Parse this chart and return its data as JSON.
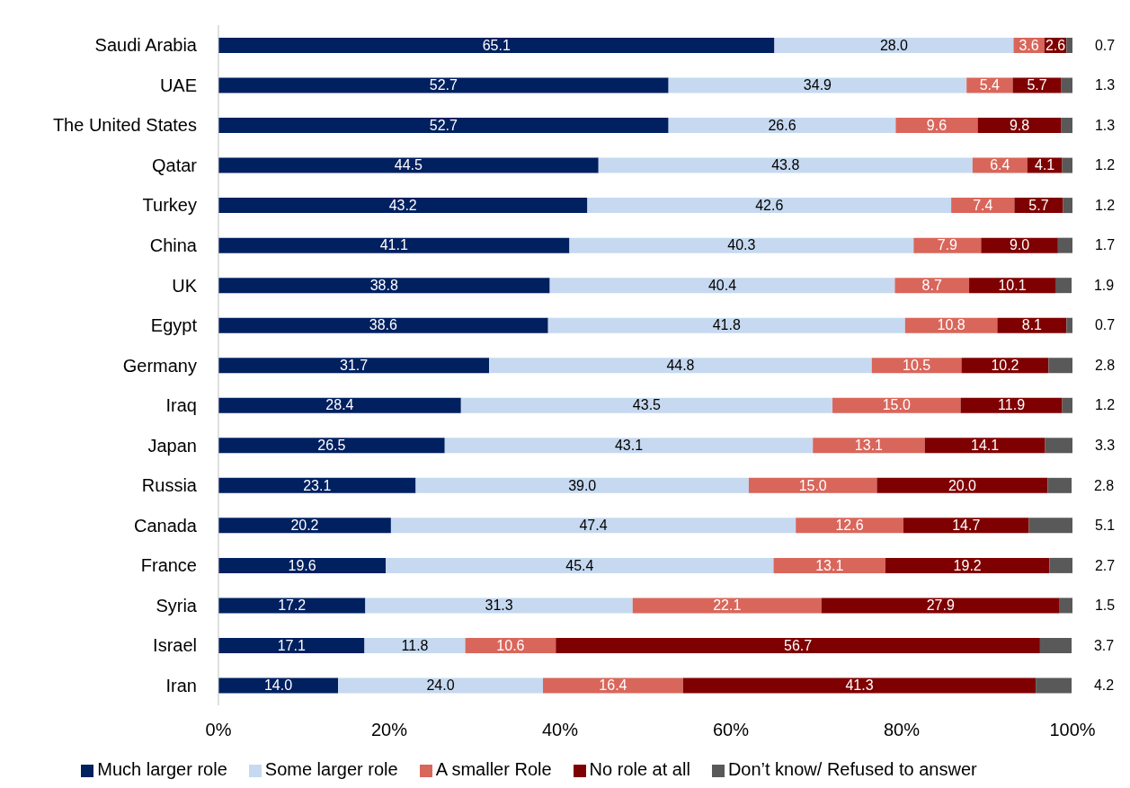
{
  "chart_data": {
    "type": "bar",
    "orientation": "horizontal",
    "stacked": true,
    "categories": [
      "Saudi Arabia",
      "UAE",
      "The United States",
      "Qatar",
      "Turkey",
      "China",
      "UK",
      "Egypt",
      "Germany",
      "Iraq",
      "Japan",
      "Russia",
      "Canada",
      "France",
      "Syria",
      "Israel",
      "Iran"
    ],
    "series": [
      {
        "name": "Much larger role",
        "color": "#002060",
        "values": [
          65.1,
          52.7,
          52.7,
          44.5,
          43.2,
          41.1,
          38.8,
          38.6,
          31.7,
          28.4,
          26.5,
          23.1,
          20.2,
          19.6,
          17.2,
          17.1,
          14.0
        ],
        "value_labels": [
          "65.1",
          "52.7",
          "52.7",
          "44.5",
          "43.2",
          "41.1",
          "38.8",
          "38.6",
          "31.7",
          "28.4",
          "26.5",
          "23.1",
          "20.2",
          "19.6",
          "17.2",
          "17.1",
          "14.0"
        ]
      },
      {
        "name": "Some larger role",
        "color": "#c6d9f0",
        "values": [
          28.0,
          34.9,
          26.6,
          43.8,
          42.6,
          40.3,
          40.4,
          41.8,
          44.8,
          43.5,
          43.1,
          39.0,
          47.4,
          45.4,
          31.3,
          11.8,
          24.0
        ],
        "value_labels": [
          "28.0",
          "34.9",
          "26.6",
          "43.8",
          "42.6",
          "40.3",
          "40.4",
          "41.8",
          "44.8",
          "43.5",
          "43.1",
          "39.0",
          "47.4",
          "45.4",
          "31.3",
          "11.8",
          "24.0"
        ]
      },
      {
        "name": "A smaller Role",
        "color": "#d9665b",
        "values": [
          3.6,
          5.4,
          9.6,
          6.4,
          7.4,
          7.9,
          8.7,
          10.8,
          10.5,
          15.0,
          13.1,
          15.0,
          12.6,
          13.1,
          22.1,
          10.6,
          16.4
        ],
        "value_labels": [
          "3.6",
          "5.4",
          "9.6",
          "6.4",
          "7.4",
          "7.9",
          "8.7",
          "10.8",
          "10.5",
          "15.0",
          "13.1",
          "15.0",
          "12.6",
          "13.1",
          "22.1",
          "10.6",
          "16.4"
        ]
      },
      {
        "name": "No role at all",
        "color": "#7f0000",
        "values": [
          2.6,
          5.7,
          9.8,
          4.1,
          5.7,
          9.0,
          10.1,
          8.1,
          10.2,
          11.9,
          14.1,
          20.0,
          14.7,
          19.2,
          27.9,
          56.7,
          41.3
        ],
        "value_labels": [
          "2.6",
          "5.7",
          "9.8",
          "4.1",
          "5.7",
          "9.0",
          "10.1",
          "8.1",
          "10.2",
          "11.9",
          "14.1",
          "20.0",
          "14.7",
          "19.2",
          "27.9",
          "56.7",
          "41.3"
        ]
      },
      {
        "name": "Don’t know/ Refused to answer",
        "color": "#595959",
        "values": [
          0.7,
          1.3,
          1.3,
          1.2,
          1.2,
          1.7,
          1.9,
          0.7,
          2.8,
          1.2,
          3.3,
          2.8,
          5.1,
          2.7,
          1.5,
          3.7,
          4.2
        ],
        "value_labels": [
          "0.7",
          "1.3",
          "1.3",
          "1.2",
          "1.2",
          "1.7",
          "1.9",
          "0.7",
          "2.8",
          "1.2",
          "3.3",
          "2.8",
          "5.1",
          "2.7",
          "1.5",
          "3.7",
          "4.2"
        ]
      }
    ],
    "xlim": [
      0,
      100
    ],
    "xticks": [
      {
        "value": 0,
        "label": "0%"
      },
      {
        "value": 20,
        "label": "20%"
      },
      {
        "value": 40,
        "label": "40%"
      },
      {
        "value": 60,
        "label": "60%"
      },
      {
        "value": 80,
        "label": "80%"
      },
      {
        "value": 100,
        "label": "100%"
      }
    ],
    "grid": false,
    "legend": "bottom"
  }
}
